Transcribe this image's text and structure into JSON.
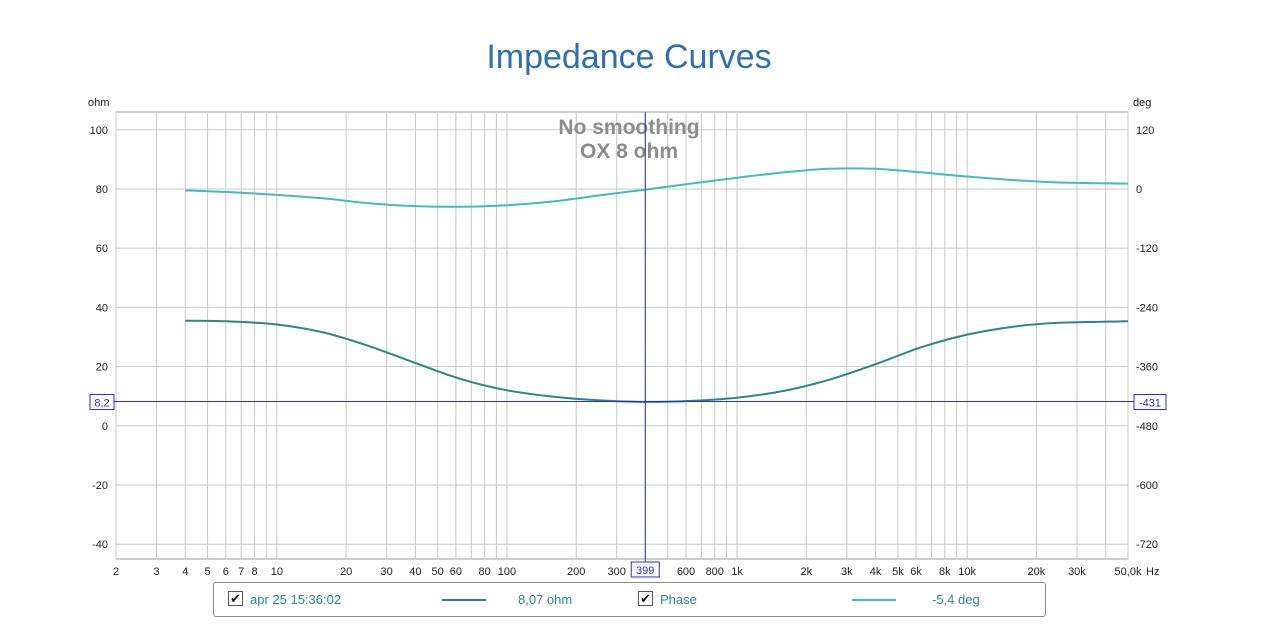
{
  "title": "Impedance Curves",
  "chart_data": {
    "type": "line",
    "annotation": [
      "No smoothing",
      "OX 8 ohm"
    ],
    "x_scale": "log",
    "x_unit": "Hz",
    "xlim": [
      2,
      50000
    ],
    "x_ticks": [
      {
        "v": 2,
        "l": "2"
      },
      {
        "v": 3,
        "l": "3"
      },
      {
        "v": 4,
        "l": "4"
      },
      {
        "v": 5,
        "l": "5"
      },
      {
        "v": 6,
        "l": "6"
      },
      {
        "v": 7,
        "l": "7"
      },
      {
        "v": 8,
        "l": "8"
      },
      {
        "v": 10,
        "l": "10"
      },
      {
        "v": 20,
        "l": "20"
      },
      {
        "v": 30,
        "l": "30"
      },
      {
        "v": 40,
        "l": "40"
      },
      {
        "v": 50,
        "l": "50"
      },
      {
        "v": 60,
        "l": "60"
      },
      {
        "v": 80,
        "l": "80"
      },
      {
        "v": 100,
        "l": "100"
      },
      {
        "v": 200,
        "l": "200"
      },
      {
        "v": 300,
        "l": "300"
      },
      {
        "v": 600,
        "l": "600"
      },
      {
        "v": 800,
        "l": "800"
      },
      {
        "v": 1000,
        "l": "1k"
      },
      {
        "v": 2000,
        "l": "2k"
      },
      {
        "v": 3000,
        "l": "3k"
      },
      {
        "v": 4000,
        "l": "4k"
      },
      {
        "v": 5000,
        "l": "5k"
      },
      {
        "v": 6000,
        "l": "6k"
      },
      {
        "v": 8000,
        "l": "8k"
      },
      {
        "v": 10000,
        "l": "10k"
      },
      {
        "v": 20000,
        "l": "20k"
      },
      {
        "v": 30000,
        "l": "30k"
      },
      {
        "v": 50000,
        "l": "50,0k"
      }
    ],
    "y_left": {
      "unit": "ohm",
      "ylim": [
        -45,
        106
      ],
      "ticks": [
        100,
        80,
        60,
        40,
        20,
        0,
        -20,
        -40
      ]
    },
    "y_right": {
      "unit": "deg",
      "ticks": [
        120,
        0,
        -120,
        -240,
        -360,
        -480,
        -600,
        -720
      ]
    },
    "grid": true,
    "cursor": {
      "x": 399,
      "x_label": "399",
      "y_left": 8.2,
      "y_left_label": "8,2",
      "y_right_label": "-431"
    },
    "colors": {
      "impedance": "#2e8585",
      "phase": "#3fbcbc",
      "cursor": "#2b2bd9",
      "grid": "#c8c8c8"
    },
    "series": [
      {
        "axis": "left",
        "x": [
          4,
          6,
          10,
          16,
          25,
          40,
          63,
          100,
          160,
          250,
          400,
          630,
          1000,
          1600,
          2500,
          4000,
          6300,
          10000,
          16000,
          25000,
          50000
        ],
        "y": [
          35.5,
          35.3,
          34.2,
          31.5,
          27.0,
          21.2,
          15.8,
          12.0,
          9.8,
          8.6,
          8.07,
          8.4,
          9.5,
          11.8,
          15.5,
          20.8,
          26.5,
          30.8,
          33.5,
          34.8,
          35.3
        ]
      },
      {
        "name": "Phase",
        "axis": "left",
        "x": [
          4,
          6,
          10,
          16,
          25,
          40,
          63,
          100,
          160,
          250,
          400,
          630,
          1000,
          1600,
          2500,
          4000,
          6300,
          10000,
          16000,
          25000,
          50000
        ],
        "y": [
          79.5,
          79.0,
          78.0,
          76.8,
          75.2,
          74.2,
          74.0,
          74.5,
          75.8,
          77.8,
          79.8,
          81.8,
          83.8,
          85.6,
          86.8,
          86.8,
          85.6,
          84.2,
          83.0,
          82.2,
          81.8
        ]
      }
    ]
  },
  "legend": {
    "items": [
      {
        "label": "apr 25 15:36:02",
        "checked": true,
        "value": "8,07 ohm"
      },
      {
        "label": "Phase",
        "checked": true,
        "value": "-5,4 deg"
      }
    ]
  }
}
